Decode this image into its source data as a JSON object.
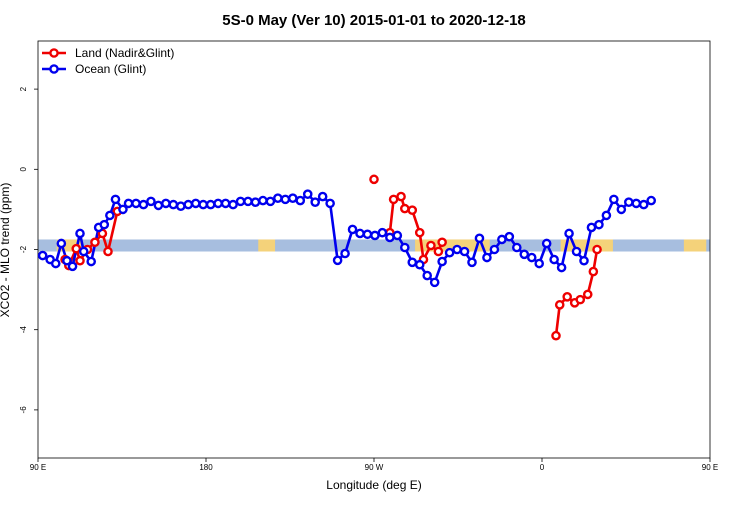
{
  "chart_data": {
    "type": "line",
    "title": "5S-0 May (Ver 10)   2015-01-01 to 2020-12-18",
    "xlabel": "Longitude (deg E)",
    "ylabel": "XCO2 - MLO trend (ppm)",
    "xlim": [
      90,
      450
    ],
    "ylim": [
      -7.2,
      3.2
    ],
    "x_ticks": [
      {
        "value": 90,
        "label": "90 E"
      },
      {
        "value": 180,
        "label": "180"
      },
      {
        "value": 270,
        "label": "90 W"
      },
      {
        "value": 360,
        "label": "0"
      },
      {
        "value": 450,
        "label": "90 E"
      },
      {
        "value": 540,
        "label": "180"
      }
    ],
    "y_ticks": [
      {
        "value": 2,
        "label": "2"
      },
      {
        "value": 0,
        "label": "0"
      },
      {
        "value": -2,
        "label": "-2"
      },
      {
        "value": -4,
        "label": "-4"
      },
      {
        "value": -6,
        "label": "-6"
      }
    ],
    "legend_position": "top-left",
    "grid": false,
    "surface_band": {
      "y_range": [
        -2.05,
        -1.75
      ],
      "colors": {
        "ocean": "#a7bedf",
        "land": "#f4d27a"
      },
      "land_segments": [
        [
          100,
          113
        ],
        [
          208,
          217
        ],
        [
          292,
          332
        ],
        [
          370,
          398
        ],
        [
          436,
          448
        ]
      ],
      "note_periodic": true
    },
    "series": [
      {
        "name": "Land (Nadir&Glint)",
        "color": "#ee0000",
        "points": [
          [
            104.5,
            -2.25
          ],
          [
            106.5,
            -2.4
          ],
          [
            110.5,
            -1.98
          ],
          [
            112.5,
            -2.28
          ],
          [
            116.5,
            -2.0
          ],
          [
            120.5,
            -1.82
          ],
          [
            124.5,
            -1.6
          ],
          [
            127.5,
            -2.05
          ],
          [
            132.5,
            -1.05
          ],
          [
            278.5,
            -1.58
          ],
          [
            280.5,
            -0.75
          ],
          [
            284.5,
            -0.68
          ],
          [
            286.5,
            -0.98
          ],
          [
            290.5,
            -1.02
          ],
          [
            294.5,
            -1.58
          ],
          [
            296.5,
            -2.25
          ],
          [
            300.5,
            -1.9
          ],
          [
            304.5,
            -2.05
          ],
          [
            306.5,
            -1.82
          ],
          [
            367.5,
            -4.15
          ],
          [
            369.5,
            -3.38
          ],
          [
            373.5,
            -3.18
          ],
          [
            377.5,
            -3.33
          ],
          [
            380.5,
            -3.25
          ],
          [
            384.5,
            -3.12
          ],
          [
            387.5,
            -2.55
          ],
          [
            389.5,
            -2.0
          ]
        ],
        "extra_points": [
          [
            270,
            -0.25
          ]
        ]
      },
      {
        "name": "Ocean (Glint)",
        "color": "#0000ee",
        "points": [
          [
            92.5,
            -2.15
          ],
          [
            96.5,
            -2.25
          ],
          [
            99.5,
            -2.35
          ],
          [
            102.5,
            -1.85
          ],
          [
            105.5,
            -2.28
          ],
          [
            108.5,
            -2.42
          ],
          [
            112.5,
            -1.6
          ],
          [
            114.5,
            -2.05
          ],
          [
            118.5,
            -2.3
          ],
          [
            122.5,
            -1.45
          ],
          [
            125.5,
            -1.38
          ],
          [
            128.5,
            -1.15
          ],
          [
            131.5,
            -0.75
          ],
          [
            135.5,
            -1.0
          ],
          [
            138.5,
            -0.85
          ],
          [
            142.5,
            -0.85
          ],
          [
            146.5,
            -0.88
          ],
          [
            150.5,
            -0.8
          ],
          [
            154.5,
            -0.9
          ],
          [
            158.5,
            -0.85
          ],
          [
            162.5,
            -0.88
          ],
          [
            166.5,
            -0.92
          ],
          [
            170.5,
            -0.88
          ],
          [
            174.5,
            -0.85
          ],
          [
            178.5,
            -0.88
          ],
          [
            182.5,
            -0.88
          ],
          [
            186.5,
            -0.85
          ],
          [
            190.5,
            -0.85
          ],
          [
            194.5,
            -0.88
          ],
          [
            198.5,
            -0.8
          ],
          [
            202.5,
            -0.8
          ],
          [
            206.5,
            -0.82
          ],
          [
            210.5,
            -0.78
          ],
          [
            214.5,
            -0.8
          ],
          [
            218.5,
            -0.72
          ],
          [
            222.5,
            -0.75
          ],
          [
            226.5,
            -0.72
          ],
          [
            230.5,
            -0.78
          ],
          [
            234.5,
            -0.62
          ],
          [
            238.5,
            -0.82
          ],
          [
            242.5,
            -0.68
          ],
          [
            246.5,
            -0.85
          ],
          [
            250.5,
            -2.27
          ],
          [
            254.5,
            -2.1
          ],
          [
            258.5,
            -1.5
          ],
          [
            262.5,
            -1.6
          ],
          [
            266.5,
            -1.62
          ],
          [
            270.5,
            -1.65
          ],
          [
            274.5,
            -1.58
          ],
          [
            278.5,
            -1.7
          ],
          [
            282.5,
            -1.65
          ],
          [
            286.5,
            -1.95
          ],
          [
            290.5,
            -2.32
          ],
          [
            294.5,
            -2.38
          ],
          [
            298.5,
            -2.65
          ],
          [
            302.5,
            -2.82
          ],
          [
            306.5,
            -2.3
          ],
          [
            310.5,
            -2.08
          ],
          [
            314.5,
            -2.0
          ],
          [
            318.5,
            -2.05
          ],
          [
            322.5,
            -2.32
          ],
          [
            326.5,
            -1.72
          ],
          [
            330.5,
            -2.2
          ],
          [
            334.5,
            -2.0
          ],
          [
            338.5,
            -1.75
          ],
          [
            342.5,
            -1.68
          ],
          [
            346.5,
            -1.95
          ],
          [
            350.5,
            -2.12
          ],
          [
            354.5,
            -2.2
          ],
          [
            358.5,
            -2.35
          ],
          [
            362.5,
            -1.85
          ],
          [
            366.5,
            -2.25
          ],
          [
            370.5,
            -2.45
          ],
          [
            374.5,
            -1.6
          ],
          [
            378.5,
            -2.05
          ],
          [
            382.5,
            -2.28
          ],
          [
            386.5,
            -1.45
          ],
          [
            390.5,
            -1.38
          ],
          [
            394.5,
            -1.15
          ],
          [
            398.5,
            -0.75
          ],
          [
            402.5,
            -1.0
          ],
          [
            406.5,
            -0.82
          ],
          [
            410.5,
            -0.85
          ],
          [
            414.5,
            -0.88
          ],
          [
            418.5,
            -0.78
          ]
        ]
      }
    ]
  }
}
